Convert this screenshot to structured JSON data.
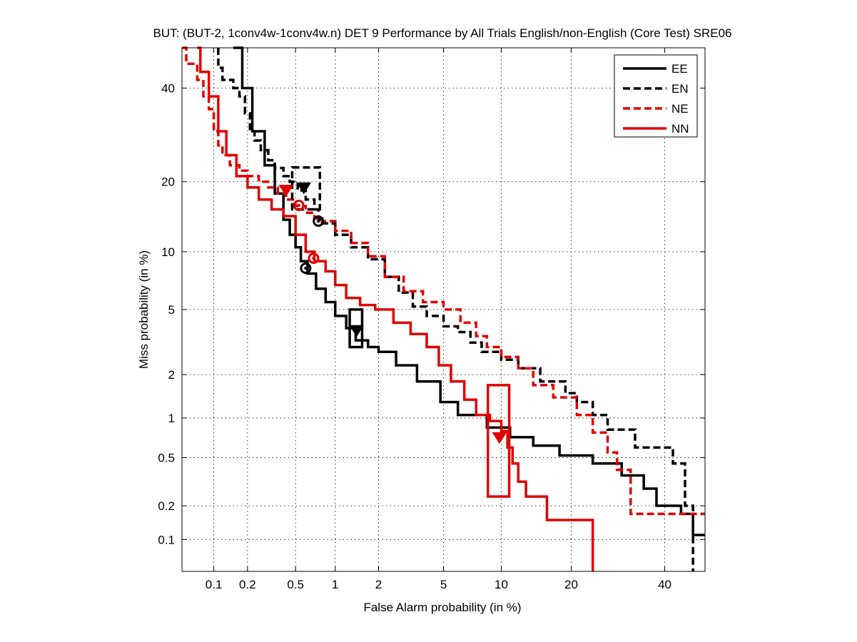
{
  "chart_data": {
    "type": "line",
    "scale": "normal-deviate (DET)",
    "title": "BUT: (BUT-2, 1conv4w-1conv4w.n) DET 9 Performance by All Trials English/non-English (Core Test) SRE06",
    "xlabel": "False Alarm probability (in %)",
    "ylabel": "Miss probability (in %)",
    "xlim": [
      0.05,
      50
    ],
    "ylim": [
      0.05,
      50
    ],
    "x_ticks": [
      0.1,
      0.2,
      0.5,
      1,
      2,
      5,
      10,
      20,
      40
    ],
    "y_ticks": [
      0.1,
      0.2,
      0.5,
      1,
      2,
      5,
      10,
      20,
      40
    ],
    "x_tick_labels": [
      "0.1",
      "0.2",
      "0.5",
      "1",
      "2",
      "5",
      "10",
      "20",
      "40"
    ],
    "y_tick_labels": [
      "0.1",
      "0.2",
      "0.5",
      "1",
      "2",
      "5",
      "10",
      "20",
      "40"
    ],
    "grid": true,
    "legend_position": "top-right",
    "series": [
      {
        "name": "EE",
        "color": "#000000",
        "dash": "solid",
        "x": [
          0.15,
          0.18,
          0.22,
          0.28,
          0.34,
          0.4,
          0.45,
          0.5,
          0.55,
          0.62,
          0.72,
          0.85,
          1.0,
          1.2,
          1.4,
          1.7,
          2.0,
          2.6,
          3.5,
          4.8,
          6.0,
          8.5,
          11.0,
          14.0,
          18.0,
          24.0,
          30.0,
          35.0,
          38.0,
          44.0,
          47.0,
          50.0
        ],
        "y": [
          50,
          40,
          30,
          23,
          18,
          14,
          12,
          10.5,
          9,
          7.8,
          6.5,
          5.5,
          4.6,
          3.9,
          3.3,
          3.0,
          2.8,
          2.3,
          1.8,
          1.3,
          1.05,
          0.85,
          0.72,
          0.62,
          0.52,
          0.45,
          0.36,
          0.28,
          0.2,
          0.17,
          0.11,
          0.11
        ]
      },
      {
        "name": "EN",
        "color": "#000000",
        "dash": "dashed",
        "x": [
          0.11,
          0.11,
          0.12,
          0.15,
          0.17,
          0.19,
          0.21,
          0.23,
          0.26,
          0.3,
          0.34,
          0.4,
          0.45,
          0.52,
          0.6,
          0.7,
          0.75,
          0.8,
          1.0,
          1.3,
          1.7,
          2.2,
          2.7,
          3.3,
          4.0,
          5.0,
          6.0,
          7.0,
          8.0,
          10.0,
          12.0,
          15.0,
          19.0,
          21.0,
          24.0,
          27.0,
          33.0,
          42.0,
          45.0,
          47.0,
          47.0
        ],
        "y": [
          50,
          45,
          42,
          40,
          38,
          34,
          30,
          28,
          26,
          24,
          22.5,
          21,
          20,
          18.5,
          17,
          15.5,
          14,
          13.5,
          12,
          10.5,
          9.2,
          7.5,
          6.2,
          5.2,
          4.6,
          4.0,
          3.7,
          3.2,
          2.8,
          2.5,
          2.2,
          1.8,
          1.5,
          1.3,
          1.05,
          0.82,
          0.6,
          0.45,
          0.2,
          0.17,
          0.05
        ]
      },
      {
        "name": "NE",
        "color": "#e00000",
        "dash": "dashed",
        "x": [
          0.05,
          0.055,
          0.07,
          0.08,
          0.09,
          0.1,
          0.11,
          0.12,
          0.14,
          0.17,
          0.2,
          0.25,
          0.3,
          0.36,
          0.42,
          0.5,
          0.6,
          0.7,
          0.8,
          1.0,
          1.3,
          1.7,
          2.2,
          2.9,
          3.8,
          5.0,
          6.2,
          7.5,
          8.5,
          10.0,
          12.0,
          14.0,
          17.0,
          21.0,
          24.0,
          27.0,
          29.0,
          32.0,
          50.0
        ],
        "y": [
          50,
          46,
          42,
          38,
          35,
          30,
          27,
          25,
          23,
          22,
          21,
          20,
          19,
          18,
          17,
          16,
          15,
          14.2,
          13.8,
          12.5,
          11,
          9.5,
          7.5,
          6.3,
          5.5,
          5.0,
          4.2,
          3.5,
          3.0,
          2.6,
          2.2,
          1.7,
          1.4,
          1.05,
          0.78,
          0.55,
          0.4,
          0.17,
          0.17
        ]
      },
      {
        "name": "NN",
        "color": "#e00000",
        "dash": "solid",
        "x": [
          0.07,
          0.075,
          0.09,
          0.11,
          0.13,
          0.16,
          0.2,
          0.25,
          0.32,
          0.4,
          0.5,
          0.6,
          0.7,
          0.85,
          1.0,
          1.2,
          1.5,
          1.9,
          2.5,
          3.2,
          4.0,
          4.7,
          5.5,
          6.5,
          7.5,
          8.8,
          10.0,
          10.7,
          11.3,
          12.0,
          13.0,
          16.0,
          20.0,
          24.0,
          24.0
        ],
        "y": [
          50,
          44,
          38,
          30,
          25,
          21,
          19,
          17,
          15.5,
          14.5,
          12,
          10,
          9.0,
          8.0,
          6.8,
          5.8,
          5.3,
          5.0,
          4.2,
          3.6,
          3.0,
          2.3,
          1.8,
          1.35,
          1.05,
          0.95,
          0.8,
          0.6,
          0.45,
          0.32,
          0.24,
          0.15,
          0.15,
          0.15,
          0.05
        ]
      }
    ],
    "markers": [
      {
        "series": "EE",
        "kind": "min-dcf",
        "symbol": "circle",
        "x": 0.6,
        "y": 8.3
      },
      {
        "series": "EE",
        "kind": "actual-dcf",
        "symbol": "triangle",
        "x": 1.42,
        "y": 3.8,
        "box": {
          "x0": 1.27,
          "x1": 1.55,
          "y0": 3.0,
          "y1": 5.0
        }
      },
      {
        "series": "EN",
        "kind": "min-dcf",
        "symbol": "circle",
        "x": 0.75,
        "y": 13.8
      },
      {
        "series": "EN",
        "kind": "actual-dcf",
        "symbol": "triangle",
        "x": 0.58,
        "y": 19.0,
        "box": {
          "x0": 0.47,
          "x1": 0.77,
          "y0": 15.5,
          "y1": 22.6
        }
      },
      {
        "series": "NE",
        "kind": "min-dcf",
        "symbol": "circle",
        "x": 0.53,
        "y": 16.1
      },
      {
        "series": "NE",
        "kind": "actual-dcf",
        "symbol": "triangle",
        "x": 0.42,
        "y": 18.6
      },
      {
        "series": "NN",
        "kind": "min-dcf",
        "symbol": "circle",
        "x": 0.69,
        "y": 9.3
      },
      {
        "series": "NN",
        "kind": "actual-dcf",
        "symbol": "triangle",
        "x": 9.8,
        "y": 0.72,
        "box": {
          "x0": 8.6,
          "x1": 10.9,
          "y0": 0.24,
          "y1": 1.7
        }
      }
    ]
  }
}
